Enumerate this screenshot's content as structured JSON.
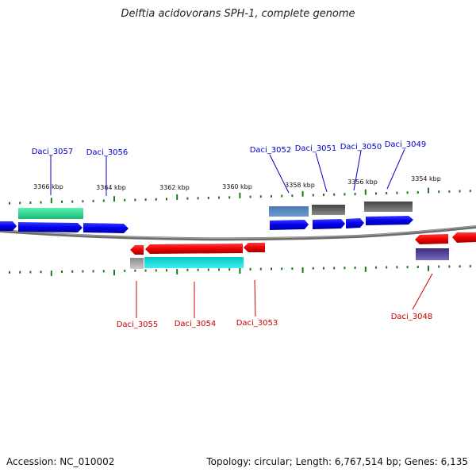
{
  "title": "Delftia acidovorans SPH-1, complete genome",
  "footer": {
    "accession": "Accession: NC_010002",
    "summary": "Topology: circular; Length: 6,767,514 bp; Genes: 6,135"
  },
  "colors": {
    "forward_label": "#0000cc",
    "reverse_label": "#cc0000",
    "tick": "#1a7a1a",
    "backbone": "#777777"
  },
  "scale_labels": [
    "3366 kbp",
    "3364 kbp",
    "3362 kbp",
    "3360 kbp",
    "3358 kbp",
    "3356 kbp",
    "3354 kbp"
  ],
  "genes_forward": [
    {
      "name": "Daci_3057"
    },
    {
      "name": "Daci_3056"
    },
    {
      "name": "Daci_3052"
    },
    {
      "name": "Daci_3051"
    },
    {
      "name": "Daci_3050"
    },
    {
      "name": "Daci_3049"
    }
  ],
  "genes_reverse": [
    {
      "name": "Daci_3055"
    },
    {
      "name": "Daci_3054"
    },
    {
      "name": "Daci_3053"
    },
    {
      "name": "Daci_3048"
    }
  ]
}
